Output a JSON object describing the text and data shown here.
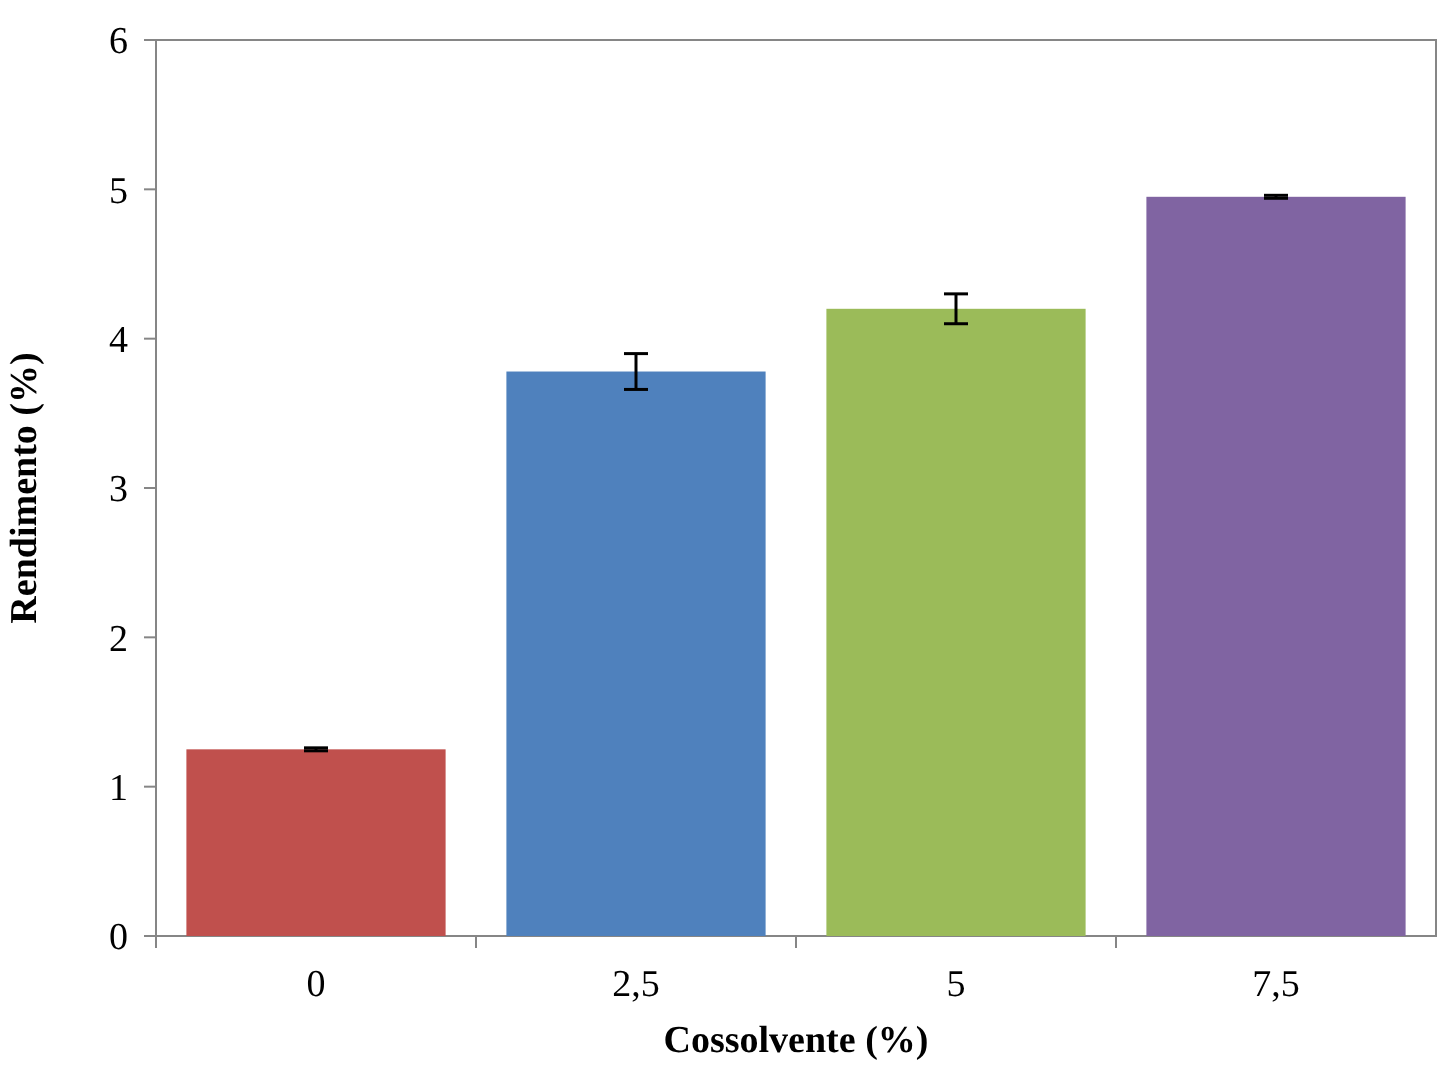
{
  "chart_data": {
    "type": "bar",
    "xlabel": "Cossolvente (%)",
    "ylabel": "Rendimento (%)",
    "categories": [
      "0",
      "2,5",
      "5",
      "7,5"
    ],
    "values": [
      1.25,
      3.78,
      4.2,
      4.95
    ],
    "errors": [
      0.01,
      0.12,
      0.1,
      0.01
    ],
    "colors": [
      "#c0504d",
      "#4f81bd",
      "#9bbb59",
      "#8064a2"
    ],
    "ylim": [
      0,
      6
    ],
    "yticks": [
      0,
      1,
      2,
      3,
      4,
      5,
      6
    ],
    "grid": false
  }
}
